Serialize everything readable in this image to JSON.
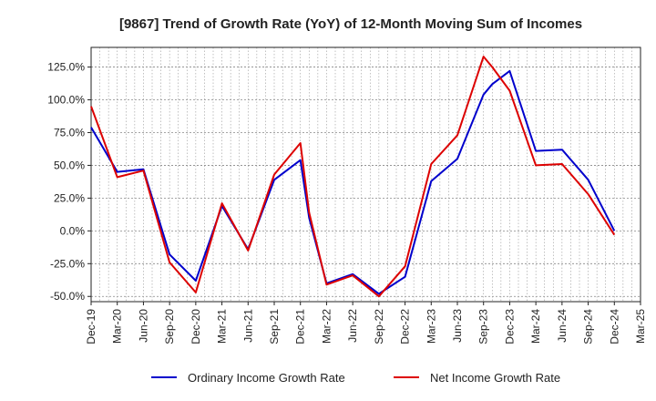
{
  "chart_data": {
    "type": "line",
    "title": "[9867]  Trend of Growth Rate (YoY) of 12-Month Moving Sum of Incomes",
    "xlabel": "",
    "ylabel": "",
    "x_ticks": [
      "Dec-19",
      "Mar-20",
      "Jun-20",
      "Sep-20",
      "Dec-20",
      "Mar-21",
      "Jun-21",
      "Sep-21",
      "Dec-21",
      "Mar-22",
      "Jun-22",
      "Sep-22",
      "Dec-22",
      "Mar-23",
      "Jun-23",
      "Sep-23",
      "Dec-23",
      "Mar-24",
      "Jun-24",
      "Sep-24",
      "Dec-24",
      "Mar-25"
    ],
    "y_ticks": [
      "125.0%",
      "100.0%",
      "75.0%",
      "50.0%",
      "25.0%",
      "0.0%",
      "-25.0%",
      "-50.0%"
    ],
    "y_tick_values": [
      125,
      100,
      75,
      50,
      25,
      0,
      -25,
      -50
    ],
    "ylim": [
      -54,
      140
    ],
    "grid": true,
    "legend_position": "bottom",
    "x": [
      "Dec-19",
      "Mar-20",
      "Jun-20",
      "Sep-20",
      "Dec-20",
      "Mar-21",
      "Jun-21",
      "Sep-21",
      "Dec-21",
      "Jan-22",
      "Mar-22",
      "Jun-22",
      "Sep-22",
      "Dec-22",
      "Mar-23",
      "Jun-23",
      "Sep-23",
      "Oct-23",
      "Dec-23",
      "Mar-24",
      "Jun-24",
      "Sep-24",
      "Dec-24"
    ],
    "series": [
      {
        "name": "Ordinary Income Growth Rate",
        "color": "#0000cc",
        "values": [
          79,
          45,
          47,
          -18,
          -38,
          19,
          -14,
          39,
          54,
          10,
          -40,
          -33,
          -48,
          -35,
          38,
          55,
          104,
          112,
          122,
          61,
          62,
          39,
          0
        ]
      },
      {
        "name": "Net Income Growth Rate",
        "color": "#dd0000",
        "values": [
          95,
          41,
          46,
          -24,
          -47,
          21,
          -15,
          43,
          67,
          14,
          -41,
          -34,
          -50,
          -27,
          51,
          73,
          133,
          125,
          107,
          50,
          51,
          28,
          -3
        ]
      }
    ]
  }
}
